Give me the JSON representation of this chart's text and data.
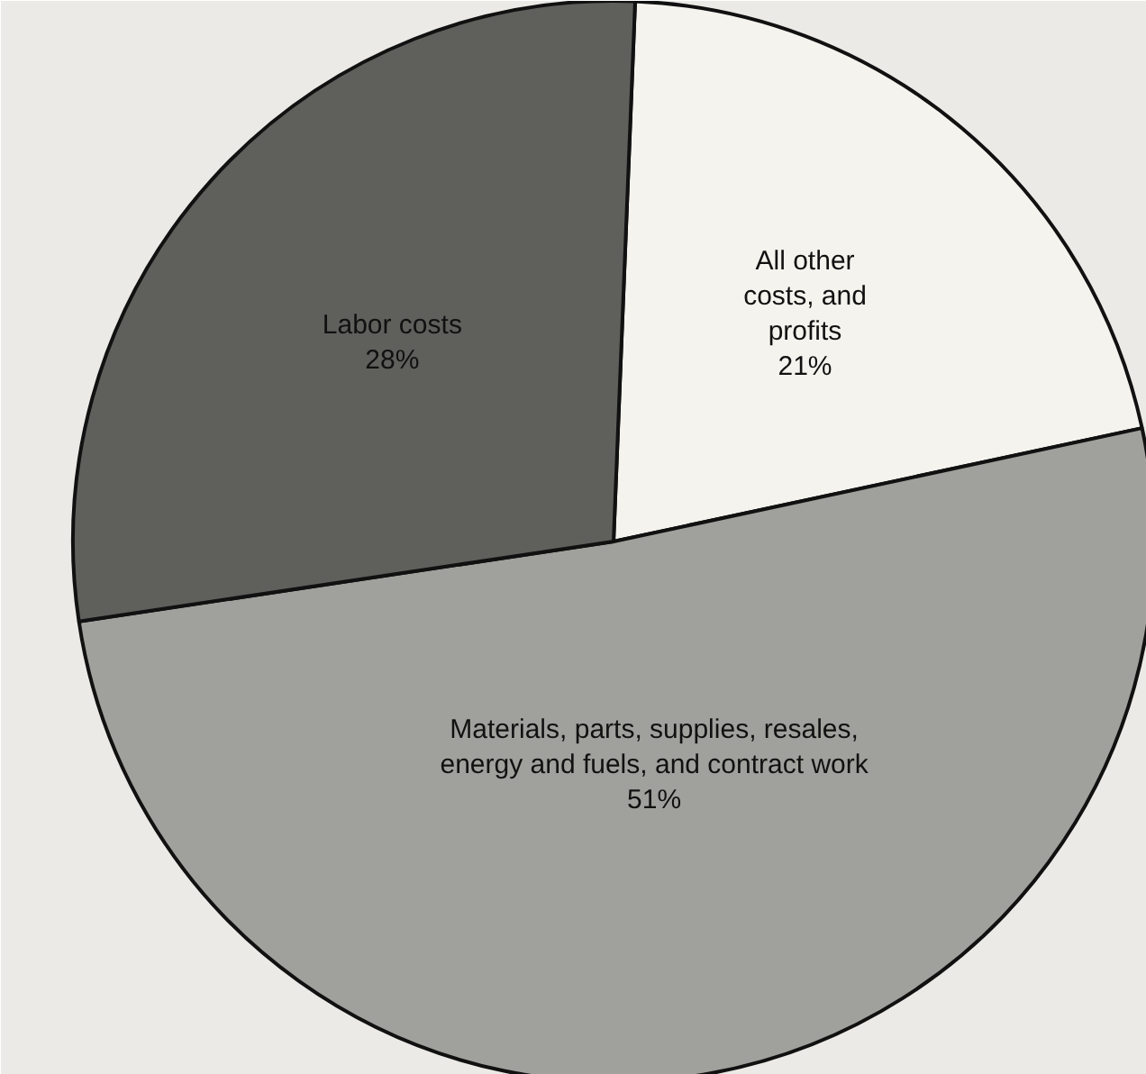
{
  "chart_data": {
    "type": "pie",
    "categories": [
      "All other\ncosts, and\nprofits",
      "Materials, parts, supplies, resales,\nenergy and fuels, and contract work",
      "Labor costs"
    ],
    "values": [
      21,
      51,
      28
    ],
    "colors": [
      "#f4f3ee",
      "#a0a09c",
      "#5f5f5c"
    ],
    "value_labels": [
      "21%",
      "51%",
      "28%"
    ]
  }
}
